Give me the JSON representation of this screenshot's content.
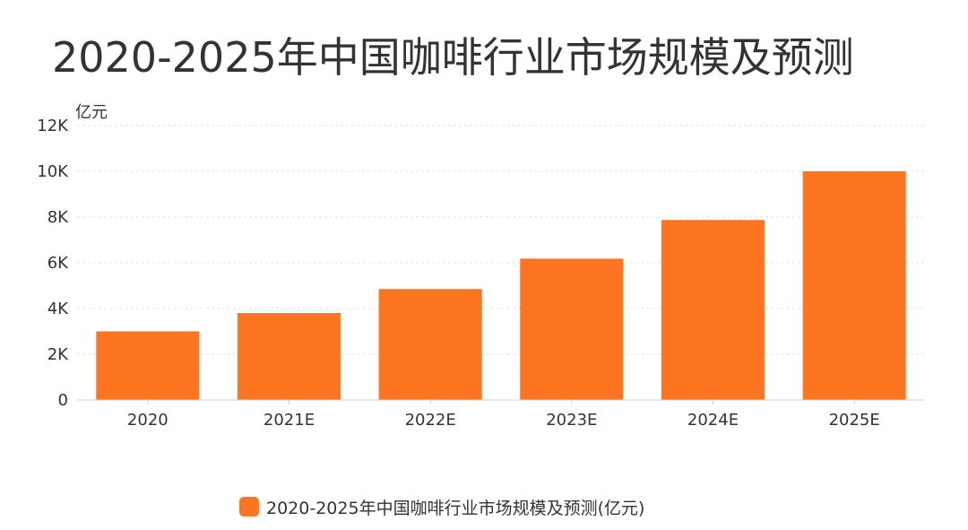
{
  "colors": {
    "bar": "#fd7520",
    "grid": "#e3e3e3",
    "axis": "#d0d0d0",
    "text": "#333333"
  },
  "chart_data": {
    "type": "bar",
    "title": "2020-2025年中国咖啡行业市场规模及预测",
    "ylabel": "亿元",
    "xlabel": "",
    "categories": [
      "2020",
      "2021E",
      "2022E",
      "2023E",
      "2024E",
      "2025E"
    ],
    "series": [
      {
        "name": "2020-2025年中国咖啡行业市场规模及预测(亿元)",
        "values": [
          3000,
          3800,
          4850,
          6180,
          7870,
          10000
        ]
      }
    ],
    "ylim": [
      0,
      12000
    ],
    "yticks": [
      0,
      2000,
      4000,
      6000,
      8000,
      10000,
      12000
    ],
    "ytick_labels": [
      "0",
      "2K",
      "4K",
      "6K",
      "8K",
      "10K",
      "12K"
    ],
    "grid": true,
    "legend_position": "bottom-center"
  }
}
